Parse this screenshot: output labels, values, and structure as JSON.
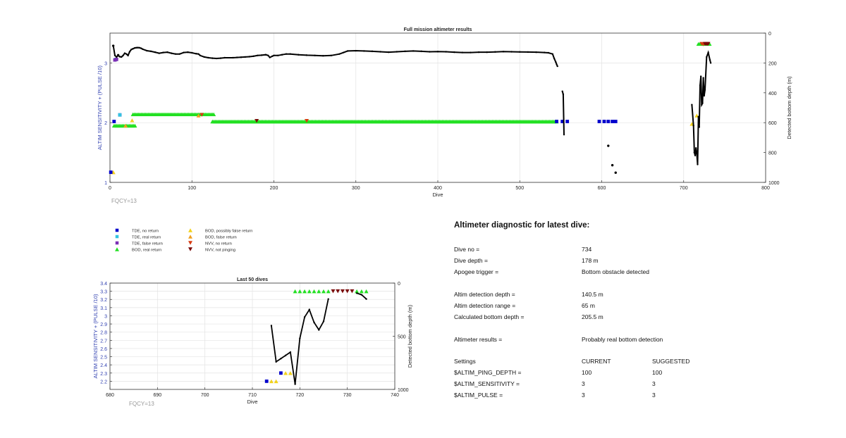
{
  "chart_data": [
    {
      "type": "scatter",
      "title": "Full mission altimeter results",
      "xlabel": "Dive",
      "ylabel_left": "ALTIM SENSITIVITY + (PULSE /10)",
      "ylabel_right": "Detected bottom depth (m)",
      "xlim": [
        0,
        800
      ],
      "ylim_left": [
        1,
        3.5
      ],
      "ylim_right": [
        0,
        1000
      ],
      "right_axis_reversed": true,
      "x_ticks": [
        "0",
        "100",
        "200",
        "300",
        "400",
        "500",
        "600",
        "700",
        "800"
      ],
      "y_left_ticks": [
        "1",
        "2",
        "3"
      ],
      "y_right_ticks": [
        "0",
        "200",
        "400",
        "600",
        "800",
        "1000"
      ],
      "annotation": "FQCY=13",
      "grid": true,
      "bottom_depth_path": [
        [
          4,
          85
        ],
        [
          6,
          150
        ],
        [
          8,
          160
        ],
        [
          10,
          150
        ],
        [
          12,
          158
        ],
        [
          14,
          160
        ],
        [
          16,
          150
        ],
        [
          18,
          135
        ],
        [
          20,
          140
        ],
        [
          22,
          150
        ],
        [
          24,
          125
        ],
        [
          26,
          110
        ],
        [
          28,
          105
        ],
        [
          30,
          100
        ],
        [
          32,
          98
        ],
        [
          34,
          97
        ],
        [
          36,
          98
        ],
        [
          38,
          102
        ],
        [
          40,
          108
        ],
        [
          45,
          118
        ],
        [
          50,
          122
        ],
        [
          55,
          128
        ],
        [
          60,
          135
        ],
        [
          65,
          130
        ],
        [
          70,
          128
        ],
        [
          75,
          135
        ],
        [
          80,
          140
        ],
        [
          85,
          140
        ],
        [
          90,
          130
        ],
        [
          95,
          128
        ],
        [
          100,
          132
        ],
        [
          105,
          138
        ],
        [
          108,
          140
        ],
        [
          110,
          150
        ],
        [
          115,
          160
        ],
        [
          120,
          165
        ],
        [
          125,
          168
        ],
        [
          130,
          170
        ],
        [
          135,
          168
        ],
        [
          140,
          165
        ],
        [
          150,
          165
        ],
        [
          155,
          163
        ],
        [
          160,
          162
        ],
        [
          165,
          160
        ],
        [
          170,
          158
        ],
        [
          175,
          155
        ],
        [
          180,
          150
        ],
        [
          185,
          148
        ],
        [
          190,
          145
        ],
        [
          193,
          150
        ],
        [
          195,
          163
        ],
        [
          198,
          155
        ],
        [
          200,
          150
        ],
        [
          205,
          150
        ],
        [
          210,
          145
        ],
        [
          215,
          140
        ],
        [
          220,
          140
        ],
        [
          230,
          145
        ],
        [
          240,
          148
        ],
        [
          250,
          150
        ],
        [
          260,
          152
        ],
        [
          270,
          150
        ],
        [
          280,
          140
        ],
        [
          285,
          130
        ],
        [
          290,
          120
        ],
        [
          300,
          118
        ],
        [
          310,
          120
        ],
        [
          320,
          122
        ],
        [
          330,
          125
        ],
        [
          340,
          128
        ],
        [
          350,
          125
        ],
        [
          360,
          122
        ],
        [
          370,
          120
        ],
        [
          380,
          122
        ],
        [
          390,
          125
        ],
        [
          400,
          124
        ],
        [
          410,
          125
        ],
        [
          420,
          128
        ],
        [
          430,
          130
        ],
        [
          440,
          130
        ],
        [
          450,
          128
        ],
        [
          460,
          128
        ],
        [
          470,
          126
        ],
        [
          480,
          124
        ],
        [
          490,
          125
        ],
        [
          500,
          126
        ],
        [
          510,
          127
        ],
        [
          520,
          128
        ],
        [
          530,
          130
        ],
        [
          535,
          132
        ],
        [
          540,
          140
        ],
        [
          542,
          170
        ],
        [
          544,
          195
        ],
        [
          545,
          210
        ],
        [
          546,
          222
        ]
      ],
      "bottom_depth_segments": [
        [
          [
            552,
            390
          ],
          [
            553,
            410
          ],
          [
            554,
            680
          ]
        ],
        [
          [
            710,
            480
          ],
          [
            712,
            620
          ],
          [
            713,
            800
          ],
          [
            714,
            820
          ],
          [
            715,
            770
          ],
          [
            716,
            810
          ],
          [
            717,
            880
          ],
          [
            718,
            560
          ],
          [
            719,
            630
          ],
          [
            720,
            350
          ],
          [
            721,
            290
          ],
          [
            722,
            480
          ],
          [
            723,
            470
          ],
          [
            724,
            300
          ],
          [
            725,
            420
          ],
          [
            726,
            380
          ],
          [
            728,
            160
          ],
          [
            730,
            130
          ],
          [
            732,
            180
          ],
          [
            733,
            200
          ]
        ]
      ],
      "bottom_depth_isolated": [
        [
          4,
          85
        ],
        [
          10,
          148
        ],
        [
          608,
          755
        ],
        [
          613,
          885
        ],
        [
          617,
          935
        ]
      ],
      "markers": {
        "tde_no_return": [
          [
            1,
            1.17
          ],
          [
            5,
            2.02
          ],
          [
            12,
            2.13
          ],
          [
            545,
            2.02
          ],
          [
            552,
            2.02
          ],
          [
            558,
            2.02
          ],
          [
            597,
            2.02
          ],
          [
            603,
            2.02
          ],
          [
            608,
            2.02
          ],
          [
            613,
            2.02
          ],
          [
            617,
            2.02
          ]
        ],
        "tde_real_return": [
          [
            7,
            3.06
          ],
          [
            12,
            2.13
          ]
        ],
        "tde_false_return": [
          [
            6,
            3.05
          ],
          [
            8,
            3.06
          ]
        ],
        "bod_real_return_bands": [
          [
            5,
            32,
            1.95
          ],
          [
            28,
            127,
            2.14
          ],
          [
            125,
            545,
            2.02
          ],
          [
            718,
            732,
            3.32
          ]
        ],
        "bod_possibly_false_return": [
          [
            4,
            1.17
          ],
          [
            27,
            2.04
          ],
          [
            710,
            1.98
          ],
          [
            716,
            2.12
          ]
        ],
        "bod_false_return": [
          [
            4,
            1.17
          ],
          [
            19,
            1.95
          ],
          [
            108,
            2.12
          ]
        ],
        "nvv_no_return": [
          [
            112,
            2.13
          ],
          [
            240,
            2.03
          ],
          [
            722,
            3.32
          ],
          [
            724,
            3.31
          ]
        ],
        "nvv_not_pinging": [
          [
            179,
            2.03
          ],
          [
            726,
            3.32
          ],
          [
            727,
            3.32
          ],
          [
            728,
            3.32
          ],
          [
            729,
            3.32
          ],
          [
            730,
            3.32
          ]
        ]
      }
    },
    {
      "type": "scatter",
      "title": "Last 50 dives",
      "xlabel": "Dive",
      "ylabel_left": "ALTIM SENSITIVITY + (PULSE /10)",
      "ylabel_right": "Detected bottom depth (m)",
      "xlim": [
        680,
        740
      ],
      "ylim_left": [
        2.1,
        3.4
      ],
      "ylim_right": [
        0,
        1000
      ],
      "right_axis_reversed": true,
      "x_ticks": [
        "680",
        "690",
        "700",
        "710",
        "720",
        "730",
        "740"
      ],
      "y_left_ticks": [
        "2.2",
        "2.3",
        "2.4",
        "2.5",
        "2.6",
        "2.7",
        "2.8",
        "2.9",
        "3",
        "3.1",
        "3.2",
        "3.3",
        "3.4"
      ],
      "y_right_ticks": [
        "0",
        "500",
        "1000"
      ],
      "annotation": "FQCY=13",
      "grid": true,
      "bottom_depth_segments": [
        [
          [
            714,
            400
          ],
          [
            715,
            740
          ],
          [
            716,
            710
          ],
          [
            717,
            680
          ],
          [
            718,
            650
          ],
          [
            719,
            950
          ]
        ],
        [
          [
            719,
            950
          ],
          [
            720,
            520
          ],
          [
            721,
            320
          ],
          [
            722,
            250
          ],
          [
            723,
            370
          ],
          [
            724,
            440
          ],
          [
            725,
            360
          ],
          [
            726,
            150
          ]
        ],
        [
          [
            732,
            95
          ],
          [
            733,
            110
          ],
          [
            734,
            150
          ]
        ]
      ],
      "markers": {
        "tde_no_return": [
          [
            713,
            2.2
          ],
          [
            716,
            2.3
          ]
        ],
        "bod_possibly_false_return": [
          [
            714,
            2.2
          ],
          [
            715,
            2.2
          ],
          [
            717,
            2.3
          ],
          [
            718,
            2.3
          ]
        ],
        "bod_false_return": [],
        "bod_real_return": [
          [
            719,
            3.3
          ],
          [
            720,
            3.3
          ],
          [
            721,
            3.3
          ],
          [
            722,
            3.3
          ],
          [
            723,
            3.3
          ],
          [
            724,
            3.3
          ],
          [
            725,
            3.3
          ],
          [
            726,
            3.3
          ],
          [
            732,
            3.3
          ],
          [
            733,
            3.3
          ],
          [
            734,
            3.3
          ]
        ],
        "nvv_not_pinging": [
          [
            727,
            3.3
          ],
          [
            728,
            3.3
          ],
          [
            729,
            3.3
          ],
          [
            730,
            3.3
          ],
          [
            731,
            3.3
          ]
        ]
      }
    }
  ],
  "legend": {
    "items": [
      {
        "label": "TDE, no return",
        "symbol": "square",
        "color": "#0000cc"
      },
      {
        "label": "TDE, real return",
        "symbol": "square",
        "color": "#33c4e0"
      },
      {
        "label": "TDE, false return",
        "symbol": "square",
        "color": "#7b2fb5"
      },
      {
        "label": "BOD, real return",
        "symbol": "triangle-up",
        "color": "#22e022"
      },
      {
        "label": "BOD, possibly false return",
        "symbol": "triangle-up",
        "color": "#f2d21c"
      },
      {
        "label": "BOD, false return",
        "symbol": "triangle-up",
        "color": "#f0a020"
      },
      {
        "label": "NVV, no return",
        "symbol": "triangle-down",
        "color": "#d83a10"
      },
      {
        "label": "NVV, not pinging",
        "symbol": "triangle-down",
        "color": "#7a0a0a"
      }
    ]
  },
  "diagnostic": {
    "title": "Altimeter diagnostic for latest dive:",
    "rows": [
      {
        "label": "Dive no =",
        "value": "734"
      },
      {
        "label": "Dive depth =",
        "value": "178 m"
      },
      {
        "label": "Apogee trigger =",
        "value": "Bottom obstacle detected"
      },
      {
        "label": "Altim detection depth =",
        "value": "140.5 m"
      },
      {
        "label": "Altim detection range =",
        "value": "65 m"
      },
      {
        "label": "Calculated bottom depth =",
        "value": "205.5 m"
      },
      {
        "label": "Altimeter results =",
        "value": "Probably real bottom detection"
      }
    ],
    "settings": {
      "header": [
        "Settings",
        "CURRENT",
        "SUGGESTED"
      ],
      "rows": [
        {
          "name": "$ALTIM_PING_DEPTH =",
          "current": "100",
          "suggested": "100"
        },
        {
          "name": "$ALTIM_SENSITIVITY =",
          "current": "3",
          "suggested": "3"
        },
        {
          "name": "$ALTIM_PULSE =",
          "current": "3",
          "suggested": "3"
        }
      ]
    }
  }
}
